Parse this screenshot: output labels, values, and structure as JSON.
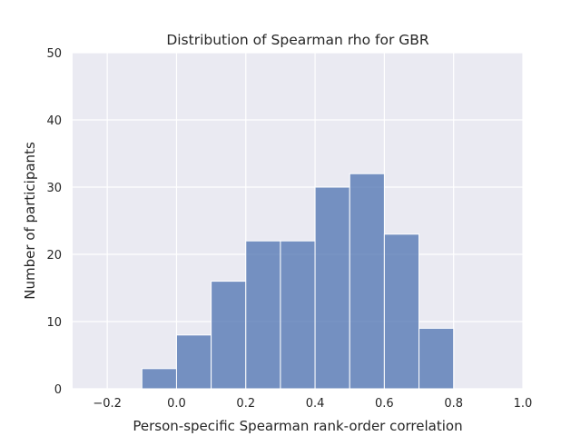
{
  "chart_data": {
    "type": "bar",
    "title": "Distribution of Spearman rho for GBR",
    "xlabel": "Person-specific Spearman rank-order correlation",
    "ylabel": "Number of participants",
    "xlim": [
      -0.3,
      1.0
    ],
    "ylim": [
      0,
      50
    ],
    "xticks": [
      -0.2,
      0.0,
      0.2,
      0.4,
      0.6,
      0.8,
      1.0
    ],
    "xtick_labels": [
      "−0.2",
      "0.0",
      "0.2",
      "0.4",
      "0.6",
      "0.8",
      "1.0"
    ],
    "yticks": [
      0,
      10,
      20,
      30,
      40,
      50
    ],
    "ytick_labels": [
      "0",
      "10",
      "20",
      "30",
      "40",
      "50"
    ],
    "bins": [
      {
        "x0": -0.1,
        "x1": 0.0,
        "count": 3
      },
      {
        "x0": 0.0,
        "x1": 0.1,
        "count": 8
      },
      {
        "x0": 0.1,
        "x1": 0.2,
        "count": 16
      },
      {
        "x0": 0.2,
        "x1": 0.3,
        "count": 22
      },
      {
        "x0": 0.3,
        "x1": 0.4,
        "count": 22
      },
      {
        "x0": 0.4,
        "x1": 0.5,
        "count": 30
      },
      {
        "x0": 0.5,
        "x1": 0.6,
        "count": 32
      },
      {
        "x0": 0.6,
        "x1": 0.7,
        "count": 23
      },
      {
        "x0": 0.7,
        "x1": 0.8,
        "count": 9
      }
    ],
    "grid": true,
    "colors": {
      "bar": "#4c72b0",
      "background": "#eaeaf2",
      "grid": "#ffffff"
    }
  }
}
